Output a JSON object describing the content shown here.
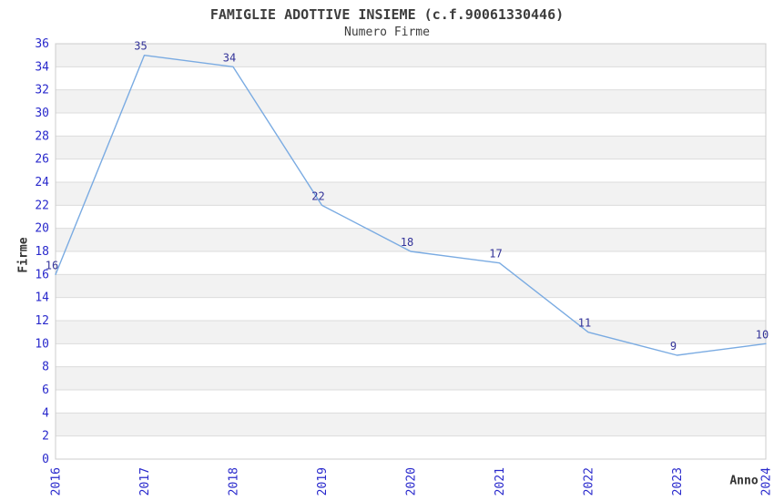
{
  "chart_data": {
    "type": "line",
    "title": "FAMIGLIE ADOTTIVE INSIEME (c.f.90061330446)",
    "subtitle": "Numero Firme",
    "xlabel": "Anno",
    "ylabel": "Firme",
    "categories": [
      "2016",
      "2017",
      "2018",
      "2019",
      "2020",
      "2021",
      "2022",
      "2023",
      "2024"
    ],
    "values": [
      16,
      35,
      34,
      22,
      18,
      17,
      11,
      9,
      10
    ],
    "ylim": [
      0,
      36
    ],
    "ytick_step": 2,
    "grid": "horizontal gridlines with alternating shaded bands",
    "legend": "none",
    "x_tick_rotation": -90,
    "data_labels_shown": true,
    "colors": {
      "line": "#7aabe2",
      "tick_label": "#2929cc",
      "data_label": "#333399",
      "band": "#f2f2f2",
      "gridline": "#dcdcdc",
      "border": "#cccccc",
      "text": "#3d3d3d"
    }
  }
}
